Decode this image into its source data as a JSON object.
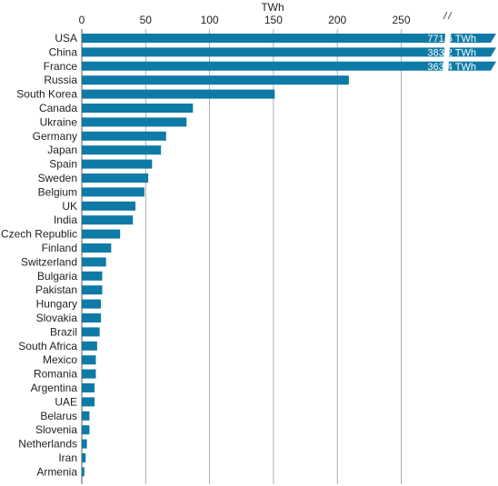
{
  "chart_data": {
    "type": "bar",
    "orientation": "horizontal",
    "xlabel": "TWh",
    "xlim": [
      0,
      300
    ],
    "x_ticks": [
      0,
      50,
      100,
      150,
      200,
      250
    ],
    "axis_break": true,
    "grid": true,
    "bar_color": "#0e7aa6",
    "categories": [
      "USA",
      "China",
      "France",
      "Russia",
      "South Korea",
      "Canada",
      "Ukraine",
      "Germany",
      "Japan",
      "Spain",
      "Sweden",
      "Belgium",
      "UK",
      "India",
      "Czech Republic",
      "Finland",
      "Switzerland",
      "Bulgaria",
      "Pakistan",
      "Hungary",
      "Slovakia",
      "Brazil",
      "South Africa",
      "Mexico",
      "Romania",
      "Argentina",
      "UAE",
      "Belarus",
      "Slovenia",
      "Netherlands",
      "Iran",
      "Armenia"
    ],
    "values": [
      771.6,
      383.2,
      363.4,
      209,
      151,
      87,
      82,
      66,
      62,
      55,
      52,
      49,
      42,
      40,
      30,
      23,
      19,
      16,
      16,
      15,
      15,
      14,
      12,
      11,
      11,
      10,
      10,
      6,
      6,
      4,
      3,
      2
    ],
    "value_labels": [
      "771.6 TWh",
      "383.2 TWh",
      "363.4 TWh",
      "",
      "",
      "",
      "",
      "",
      "",
      "",
      "",
      "",
      "",
      "",
      "",
      "",
      "",
      "",
      "",
      "",
      "",
      "",
      "",
      "",
      "",
      "",
      "",
      "",
      "",
      "",
      "",
      ""
    ]
  }
}
